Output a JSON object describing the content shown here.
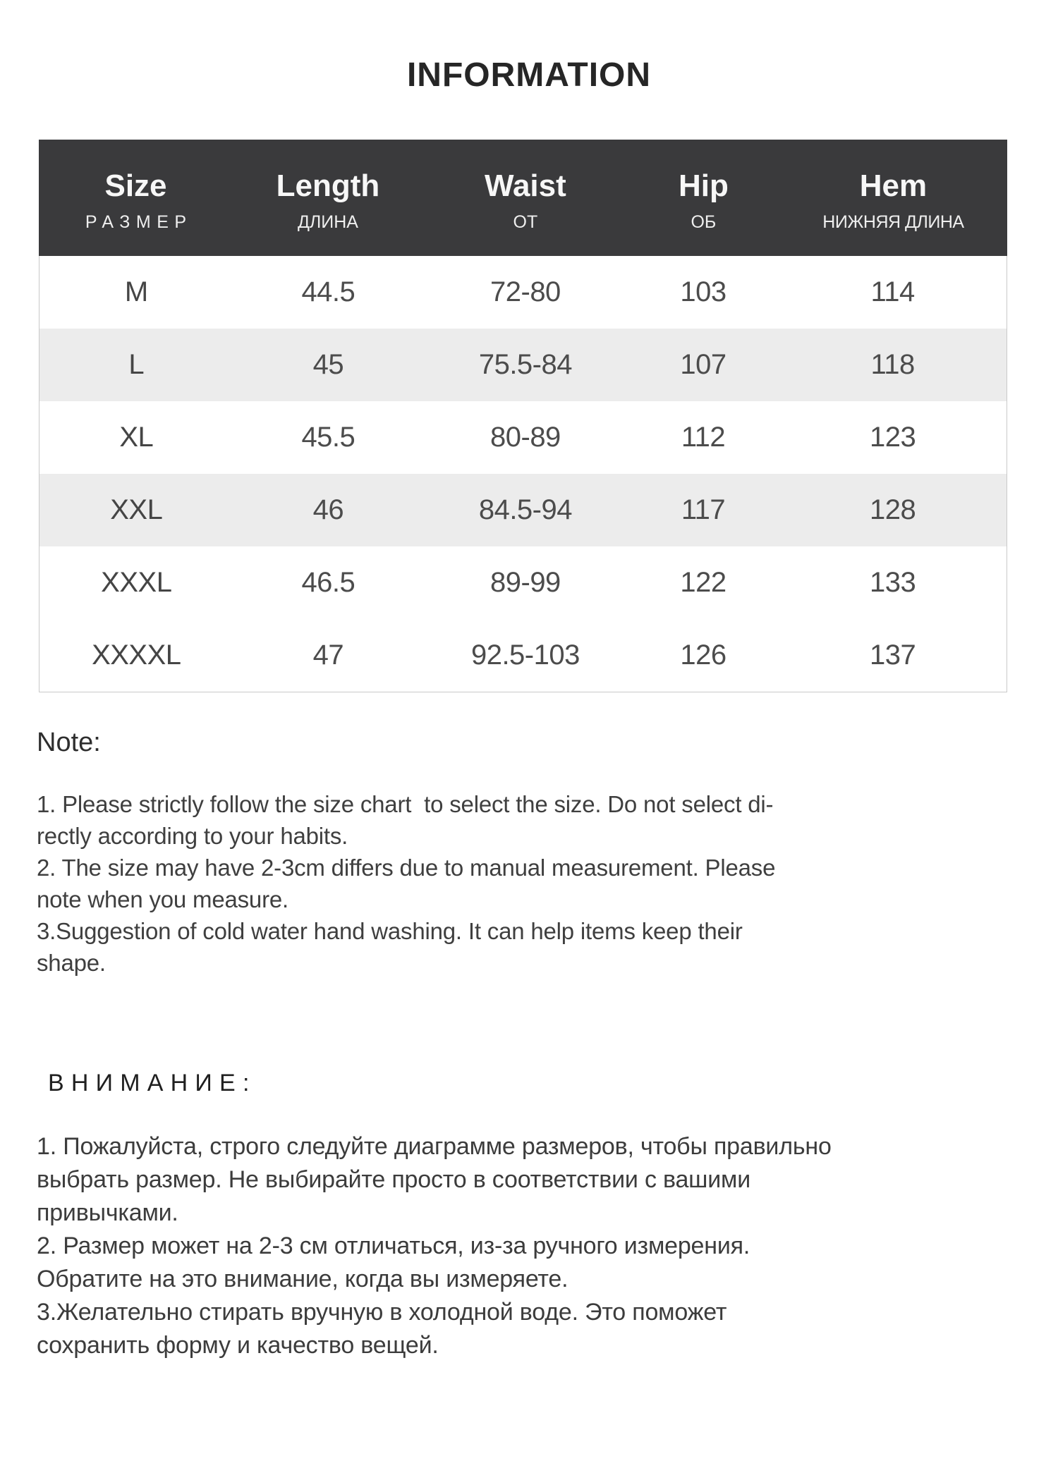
{
  "title": "INFORMATION",
  "size_chart": {
    "columns": [
      {
        "label": "Size",
        "sub": "РАЗМЕР"
      },
      {
        "label": "Length",
        "sub": "ДЛИНА"
      },
      {
        "label": "Waist",
        "sub": "ОТ"
      },
      {
        "label": "Hip",
        "sub": "ОБ"
      },
      {
        "label": "Hem",
        "sub": "НИЖНЯЯ ДЛИНА"
      }
    ],
    "rows": [
      {
        "size": "M",
        "length": "44.5",
        "waist": "72-80",
        "hip": "103",
        "hem": "114"
      },
      {
        "size": "L",
        "length": "45",
        "waist": "75.5-84",
        "hip": "107",
        "hem": "118"
      },
      {
        "size": "XL",
        "length": "45.5",
        "waist": "80-89",
        "hip": "112",
        "hem": "123"
      },
      {
        "size": "XXL",
        "length": "46",
        "waist": "84.5-94",
        "hip": "117",
        "hem": "128"
      },
      {
        "size": "XXXL",
        "length": "46.5",
        "waist": "89-99",
        "hip": "122",
        "hem": "133"
      },
      {
        "size": "XXXXL",
        "length": "47",
        "waist": "92.5-103",
        "hip": "126",
        "hem": "137"
      }
    ]
  },
  "note_en": {
    "heading": "Note:",
    "lines": [
      "1. Please strictly follow the size chart  to select the size. Do not select di-",
      "rectly according to your habits.",
      "2. The size may have 2-3cm differs due to manual measurement. Please",
      "note when you measure.",
      "3.Suggestion of cold water hand washing. It can help items keep their",
      "shape."
    ]
  },
  "note_ru": {
    "heading": "ВНИМАНИЕ:",
    "lines": [
      "1. Пожалуйста, строго следуйте диаграмме размеров, чтобы правильно",
      "выбрать размер. Не выбирайте просто в соответствии с вашими",
      "привычками.",
      "2. Размер может на 2-3 см отличаться, из-за ручного измерения.",
      "Обратите на это внимание, когда вы измеряете.",
      "3.Желательно стирать вручную в холодной воде. Это поможет",
      "сохранить форму и качество вещей."
    ]
  },
  "colors": {
    "header_bg": "#3a3a3c",
    "header_text": "#f7f7f7",
    "row_shaded": "#ececec",
    "table_border": "#c9c9c9",
    "cell_text": "#4c4c4c"
  }
}
